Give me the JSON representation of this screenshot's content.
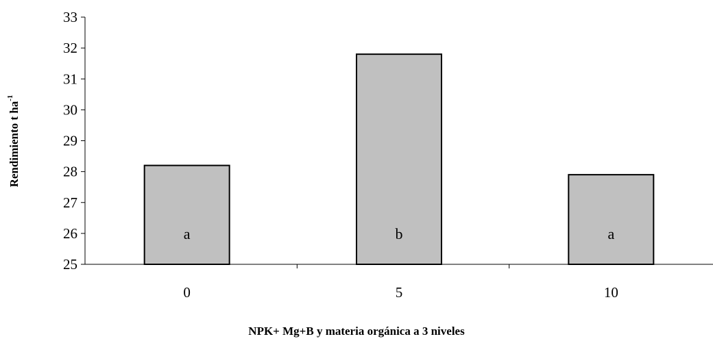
{
  "chart_data": {
    "type": "bar",
    "categories": [
      "0",
      "5",
      "10"
    ],
    "values": [
      28.2,
      31.8,
      27.9
    ],
    "bar_labels": [
      "a",
      "b",
      "a"
    ],
    "xlabel": "NPK+ Mg+B y materia orgánica a 3 niveles",
    "ylabel_main": "Rendimiento t ha",
    "ylabel_sup": "-1",
    "ylim": [
      25,
      33
    ],
    "yticks": [
      25,
      26,
      27,
      28,
      29,
      30,
      31,
      32,
      33
    ],
    "grid": false,
    "legend": "none",
    "bar_color": "#c0c0c0"
  }
}
